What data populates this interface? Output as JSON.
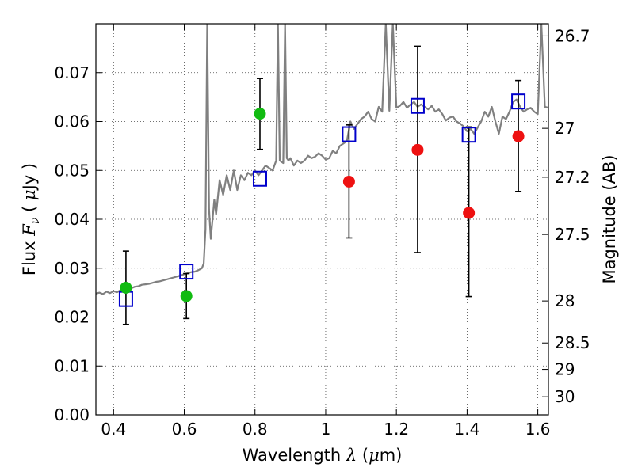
{
  "chart_data": {
    "type": "scatter",
    "xlabel_parts": [
      "Wavelength  ",
      "λ",
      " (",
      "μ",
      "m)"
    ],
    "ylabel_parts": [
      "Flux  ",
      "F",
      "ν",
      "  ( ",
      "μ",
      "Jy )"
    ],
    "y2label": "Magnitude (AB)",
    "xlim": [
      0.35,
      1.63
    ],
    "ylim": [
      0.0,
      0.08
    ],
    "x_ticks": [
      0.4,
      0.6,
      0.8,
      1.0,
      1.2,
      1.4,
      1.6
    ],
    "x_tick_labels": [
      "0.4",
      "0.6",
      "0.8",
      "1",
      "1.2",
      "1.4",
      "1.6"
    ],
    "y_ticks": [
      0.0,
      0.01,
      0.02,
      0.03,
      0.04,
      0.05,
      0.06,
      0.07
    ],
    "y_tick_labels": [
      "0.00",
      "0.01",
      "0.02",
      "0.03",
      "0.04",
      "0.05",
      "0.06",
      "0.07"
    ],
    "y2_ticks": [
      {
        "label": "26.7",
        "flux": 0.0775
      },
      {
        "label": "27",
        "flux": 0.0586
      },
      {
        "label": "27.2",
        "flux": 0.0486
      },
      {
        "label": "27.5",
        "flux": 0.0369
      },
      {
        "label": "28",
        "flux": 0.0233
      },
      {
        "label": "28.5",
        "flux": 0.0147
      },
      {
        "label": "29",
        "flux": 0.0093
      },
      {
        "label": "30",
        "flux": 0.0037
      }
    ],
    "grid": true,
    "colors": {
      "model": "#808080",
      "green": "#11bb11",
      "red": "#ee1111",
      "blue_square": "#0000cc",
      "errorbar": "#000000",
      "grid": "#444444"
    },
    "series": [
      {
        "kind": "green-points",
        "points": [
          {
            "x": 0.435,
            "y": 0.026,
            "yerr_low": 0.0185,
            "yerr_high": 0.0335
          },
          {
            "x": 0.606,
            "y": 0.0243,
            "yerr_low": 0.0197,
            "yerr_high": 0.0289
          },
          {
            "x": 0.814,
            "y": 0.0616,
            "yerr_low": 0.0543,
            "yerr_high": 0.0688
          }
        ]
      },
      {
        "kind": "red-points",
        "points": [
          {
            "x": 1.066,
            "y": 0.0477,
            "yerr_low": 0.0362,
            "yerr_high": 0.0593
          },
          {
            "x": 1.26,
            "y": 0.0542,
            "yerr_low": 0.0332,
            "yerr_high": 0.0754
          },
          {
            "x": 1.405,
            "y": 0.0413,
            "yerr_low": 0.0242,
            "yerr_high": 0.0589
          },
          {
            "x": 1.545,
            "y": 0.057,
            "yerr_low": 0.0457,
            "yerr_high": 0.0684
          }
        ]
      },
      {
        "kind": "blue-squares",
        "points": [
          {
            "x": 0.435,
            "y": 0.0237
          },
          {
            "x": 0.606,
            "y": 0.0293
          },
          {
            "x": 0.814,
            "y": 0.0483
          },
          {
            "x": 1.066,
            "y": 0.0574
          },
          {
            "x": 1.26,
            "y": 0.0632
          },
          {
            "x": 1.405,
            "y": 0.0573
          },
          {
            "x": 1.545,
            "y": 0.0641
          }
        ]
      },
      {
        "kind": "model-line",
        "x": [
          0.35,
          0.36,
          0.37,
          0.38,
          0.39,
          0.4,
          0.41,
          0.42,
          0.43,
          0.44,
          0.45,
          0.46,
          0.47,
          0.48,
          0.49,
          0.5,
          0.51,
          0.52,
          0.53,
          0.54,
          0.55,
          0.56,
          0.57,
          0.58,
          0.59,
          0.6,
          0.61,
          0.62,
          0.63,
          0.64,
          0.65,
          0.655,
          0.66,
          0.665,
          0.67,
          0.675,
          0.68,
          0.685,
          0.69,
          0.7,
          0.71,
          0.72,
          0.73,
          0.74,
          0.75,
          0.76,
          0.77,
          0.78,
          0.79,
          0.8,
          0.81,
          0.82,
          0.83,
          0.84,
          0.85,
          0.86,
          0.865,
          0.87,
          0.88,
          0.885,
          0.89,
          0.895,
          0.9,
          0.91,
          0.92,
          0.93,
          0.94,
          0.95,
          0.96,
          0.97,
          0.98,
          0.99,
          1.0,
          1.01,
          1.02,
          1.03,
          1.04,
          1.05,
          1.06,
          1.07,
          1.08,
          1.09,
          1.1,
          1.11,
          1.12,
          1.13,
          1.14,
          1.15,
          1.16,
          1.17,
          1.18,
          1.19,
          1.2,
          1.21,
          1.22,
          1.23,
          1.24,
          1.25,
          1.26,
          1.27,
          1.28,
          1.29,
          1.3,
          1.31,
          1.32,
          1.33,
          1.34,
          1.35,
          1.36,
          1.37,
          1.38,
          1.39,
          1.4,
          1.41,
          1.42,
          1.43,
          1.44,
          1.45,
          1.46,
          1.47,
          1.48,
          1.49,
          1.5,
          1.51,
          1.52,
          1.53,
          1.54,
          1.55,
          1.56,
          1.57,
          1.58,
          1.59,
          1.6,
          1.61,
          1.62,
          1.63
        ],
        "y": [
          0.0248,
          0.025,
          0.0247,
          0.0252,
          0.0249,
          0.0253,
          0.0251,
          0.0255,
          0.0254,
          0.0258,
          0.0259,
          0.0262,
          0.0263,
          0.0266,
          0.0267,
          0.0268,
          0.027,
          0.0272,
          0.0273,
          0.0275,
          0.0277,
          0.0279,
          0.0281,
          0.0283,
          0.0285,
          0.0288,
          0.029,
          0.0292,
          0.0293,
          0.0296,
          0.03,
          0.031,
          0.038,
          0.08,
          0.042,
          0.036,
          0.04,
          0.044,
          0.041,
          0.048,
          0.045,
          0.049,
          0.046,
          0.05,
          0.046,
          0.049,
          0.048,
          0.0495,
          0.049,
          0.05,
          0.049,
          0.05,
          0.051,
          0.0505,
          0.05,
          0.052,
          0.08,
          0.052,
          0.0515,
          0.08,
          0.0525,
          0.052,
          0.0525,
          0.051,
          0.052,
          0.0515,
          0.052,
          0.053,
          0.0525,
          0.0528,
          0.0535,
          0.053,
          0.0522,
          0.0525,
          0.054,
          0.0535,
          0.055,
          0.0555,
          0.056,
          0.06,
          0.0585,
          0.0595,
          0.0605,
          0.061,
          0.062,
          0.0605,
          0.06,
          0.063,
          0.062,
          0.08,
          0.0622,
          0.08,
          0.0628,
          0.0632,
          0.064,
          0.0628,
          0.0635,
          0.064,
          0.063,
          0.0635,
          0.063,
          0.0625,
          0.0632,
          0.062,
          0.0625,
          0.0615,
          0.0602,
          0.0608,
          0.061,
          0.06,
          0.0596,
          0.059,
          0.058,
          0.0585,
          0.0575,
          0.0588,
          0.06,
          0.062,
          0.061,
          0.063,
          0.06,
          0.0575,
          0.061,
          0.0605,
          0.062,
          0.064,
          0.0645,
          0.063,
          0.062,
          0.0625,
          0.0628,
          0.062,
          0.0615,
          0.08,
          0.063,
          0.0628
        ]
      }
    ]
  }
}
